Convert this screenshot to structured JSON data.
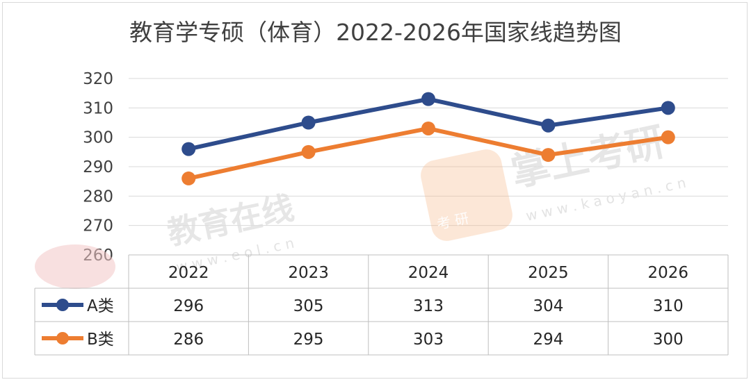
{
  "chart_data": {
    "type": "line",
    "title": "教育学专硕（体育）2022-2026年国家线趋势图",
    "categories": [
      "2022",
      "2023",
      "2024",
      "2025",
      "2026"
    ],
    "series": [
      {
        "name": "A类",
        "values": [
          296,
          305,
          313,
          304,
          310
        ],
        "color": "#2e4c8c"
      },
      {
        "name": "B类",
        "values": [
          286,
          295,
          303,
          294,
          300
        ],
        "color": "#ed7d31"
      }
    ],
    "yticks": [
      "320",
      "310",
      "300",
      "290",
      "280",
      "270",
      "260"
    ],
    "ylim": [
      260,
      320
    ],
    "grid": true,
    "legend": "data-table"
  },
  "watermarks": {
    "eol_name": "教育在线",
    "eol_url": "w w w . e o l . c n",
    "kaoyan_name": "掌上考研",
    "kaoyan_url": "w w w . k a o y a n . c n",
    "kaoyan_badge": "考  研"
  }
}
